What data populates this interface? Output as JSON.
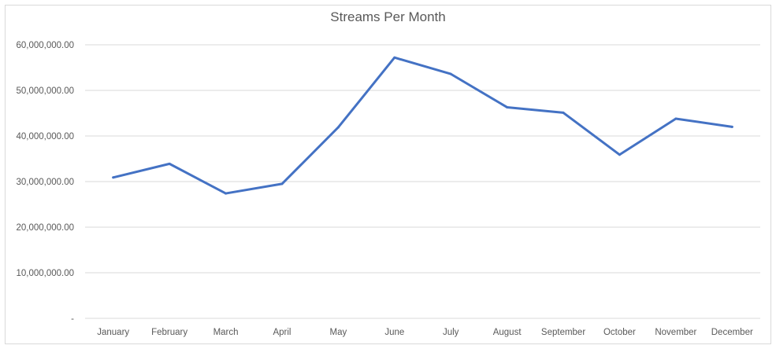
{
  "chart_data": {
    "type": "line",
    "title": "Streams Per Month",
    "xlabel": "",
    "ylabel": "",
    "categories": [
      "January",
      "February",
      "March",
      "April",
      "May",
      "June",
      "July",
      "August",
      "September",
      "October",
      "November",
      "December"
    ],
    "series": [
      {
        "values": [
          30900000,
          33900000,
          27400000,
          29500000,
          41900000,
          57200000,
          53600000,
          46300000,
          45100000,
          35900000,
          43800000,
          42000000
        ]
      }
    ],
    "ylim": [
      0,
      60000000
    ],
    "y_ticks": [
      0,
      10000000,
      20000000,
      30000000,
      40000000,
      50000000,
      60000000
    ],
    "y_tick_labels": [
      "-",
      "10,000,000.00",
      "20,000,000.00",
      "30,000,000.00",
      "40,000,000.00",
      "50,000,000.00",
      "60,000,000.00"
    ],
    "grid": "horizontal",
    "legend": "none",
    "line_color": "#4472c4",
    "grid_color": "#d9d9d9"
  }
}
